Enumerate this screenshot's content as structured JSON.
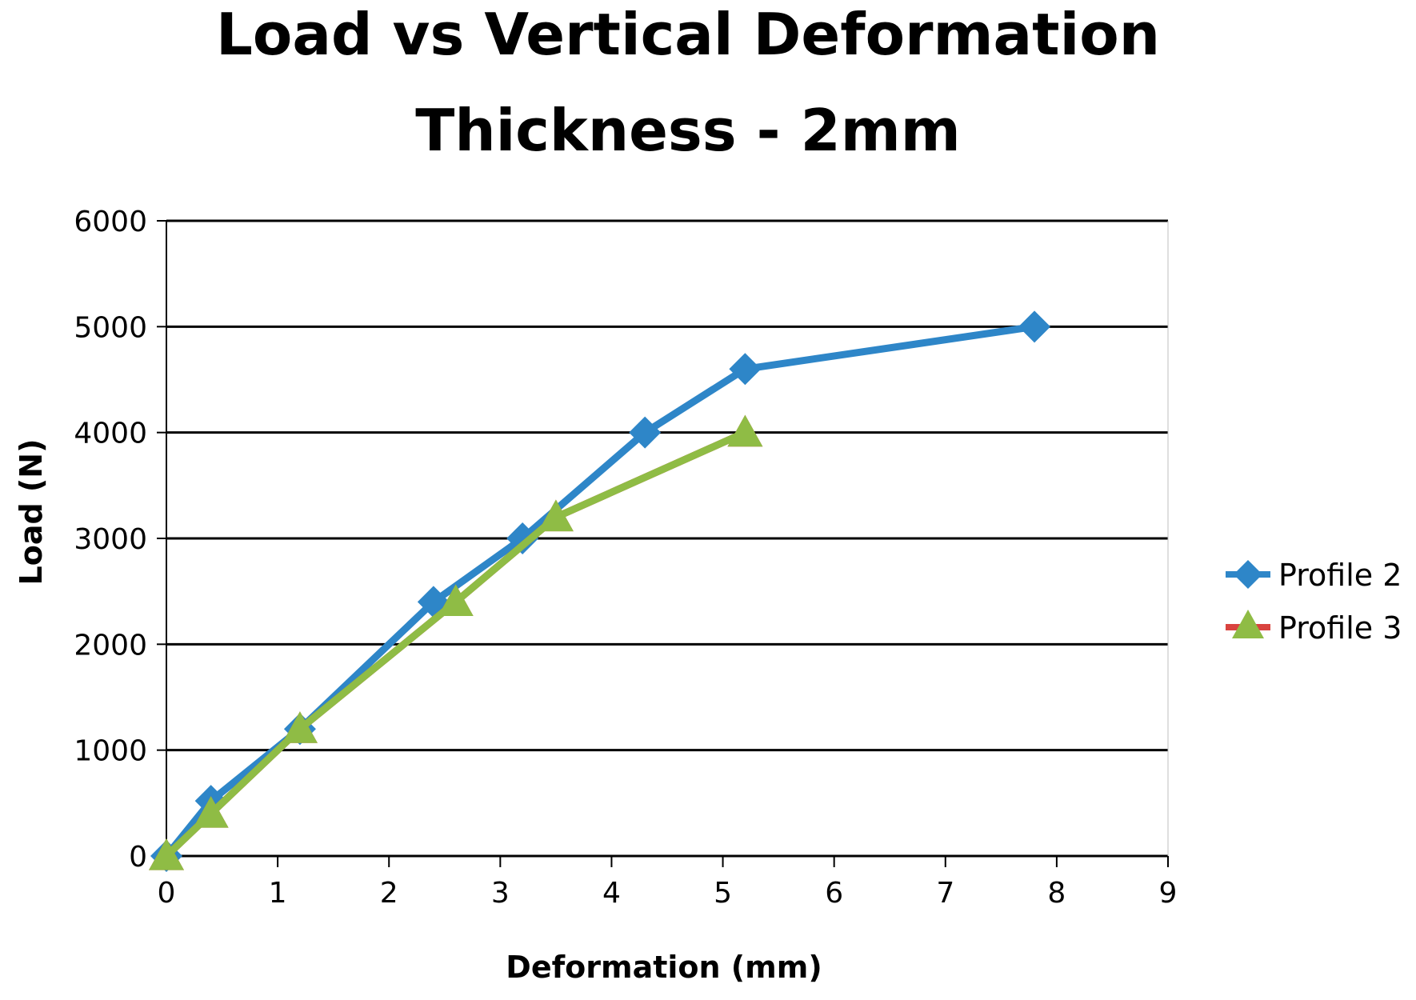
{
  "chart_data": {
    "type": "line",
    "title": "Load vs Vertical Deformation",
    "subtitle": "Thickness - 2mm",
    "xlabel": "Deformation (mm)",
    "ylabel": "Load (N)",
    "xlim": [
      0,
      9
    ],
    "ylim": [
      0,
      6000
    ],
    "xticks": [
      0,
      1,
      2,
      3,
      4,
      5,
      6,
      7,
      8,
      9
    ],
    "yticks": [
      0,
      1000,
      2000,
      3000,
      4000,
      5000,
      6000
    ],
    "grid": "horizontal",
    "legend_position": "right",
    "series": [
      {
        "name": "Profile 2",
        "color": "#2e86c8",
        "marker": "diamond",
        "x": [
          0,
          0.4,
          1.2,
          2.4,
          3.2,
          4.3,
          5.2,
          7.8
        ],
        "y": [
          0,
          520,
          1200,
          2400,
          3000,
          4000,
          4600,
          5000
        ]
      },
      {
        "name": "Profile 3",
        "color": "#d9433f",
        "marker": "triangle",
        "x": [
          0,
          0.4,
          1.2,
          2.6,
          3.5,
          5.2
        ],
        "y": [
          0,
          400,
          1200,
          2400,
          3200,
          4000
        ]
      },
      {
        "name": "",
        "color": "#8fbc45",
        "marker": "triangle",
        "x": [
          0,
          0.4,
          1.2,
          2.6,
          3.5,
          5.2
        ],
        "y": [
          0,
          400,
          1200,
          2400,
          3200,
          4000
        ]
      }
    ]
  }
}
